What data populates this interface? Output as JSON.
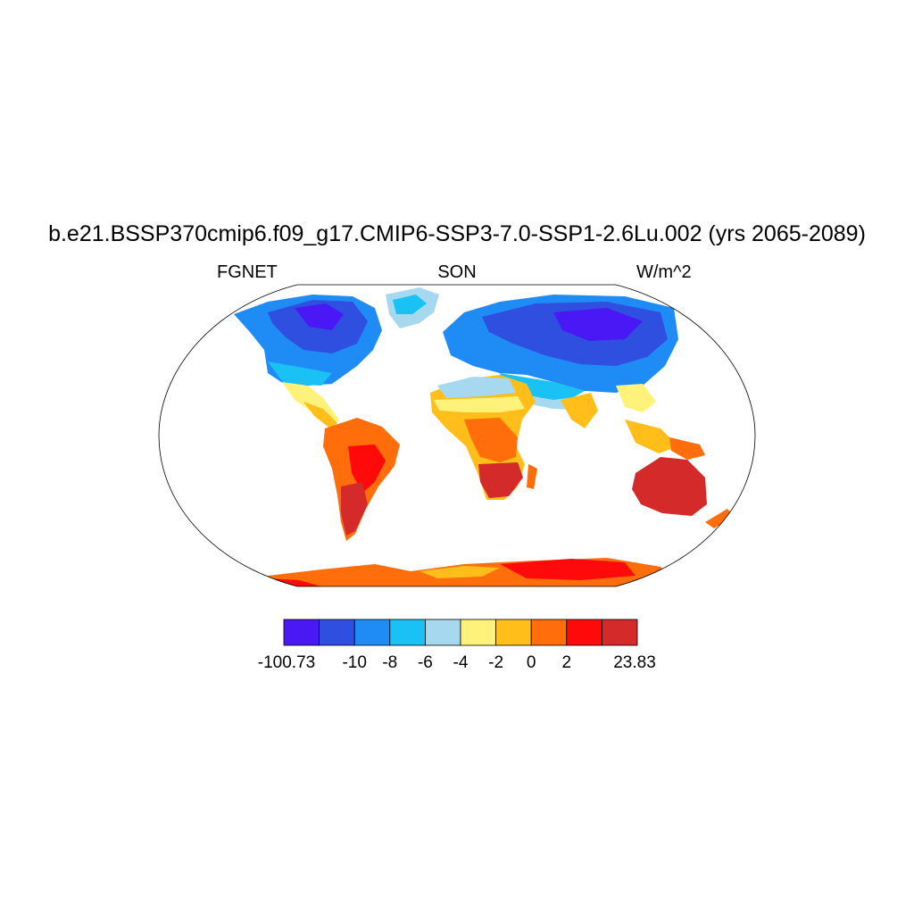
{
  "title": "b.e21.BSSP370cmip6.f09_g17.CMIP6-SSP3-7.0-SSP1-2.6Lu.002 (yrs 2065-2089)",
  "left_label": "FGNET",
  "center_label": "SON",
  "right_label": "W/m^2",
  "colorbar": {
    "colors": [
      "#4a17f5",
      "#2f4fe0",
      "#1f8cf5",
      "#19c1f5",
      "#a6d8f0",
      "#fff27a",
      "#ffbe1a",
      "#ff6e0a",
      "#ff0a0a",
      "#d42a2a"
    ],
    "labels": [
      "-100.73",
      "-10",
      "-8",
      "-6",
      "-4",
      "-2",
      "0",
      "2",
      "23.83"
    ]
  }
}
